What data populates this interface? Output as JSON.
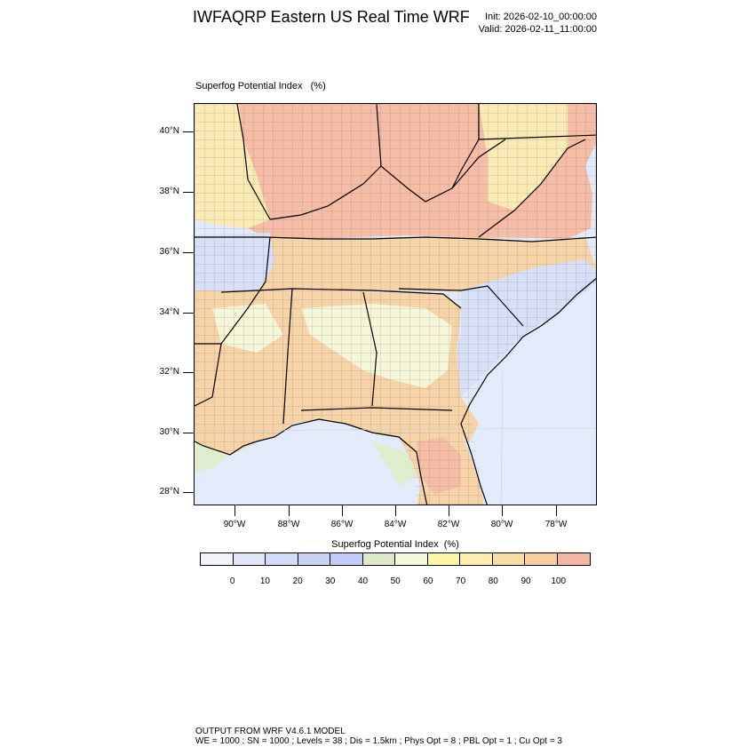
{
  "header": {
    "title": "IWFAQRP Eastern US Real Time WRF",
    "init": "Init: 2026-02-10_00:00:00",
    "valid": "Valid: 2026-02-11_11:00:00"
  },
  "plot": {
    "field_label": "Superfog Potential Index   (%)",
    "lat_ticks": [
      "40°N",
      "38°N",
      "36°N",
      "34°N",
      "32°N",
      "30°N",
      "28°N"
    ],
    "lon_ticks": [
      "90°W",
      "88°W",
      "86°W",
      "84°W",
      "82°W",
      "80°W",
      "78°W"
    ]
  },
  "colorbar": {
    "title": "Superfog Potential Index  (%)",
    "colors": [
      "#f0f3f8",
      "#dfe6f6",
      "#d2dcf6",
      "#c9d3f4",
      "#c3cdf7",
      "#dde9cb",
      "#f3f7dc",
      "#fbf7a6",
      "#fbedad",
      "#f8dca6",
      "#f6cfa3",
      "#f4b7a3"
    ],
    "labels": [
      "0",
      "10",
      "20",
      "30",
      "40",
      "50",
      "60",
      "70",
      "80",
      "90",
      "100"
    ]
  },
  "footer": {
    "line1": "OUTPUT FROM WRF V4.6.1 MODEL",
    "line2": "WE = 1000 ; SN = 1000 ; Levels = 38 ; Dis = 1.5km ; Phys Opt = 8 ; PBL Opt = 1 ; Cu Opt = 3"
  },
  "map": {
    "colors": {
      "ocean": "#e3ebfb",
      "high": "#f5bca6",
      "orange": "#f7d3a8",
      "yellow": "#faeab3",
      "lightyellow": "#f6f6d8",
      "blue": "#d7e0f7",
      "green": "#dfeccd"
    }
  }
}
